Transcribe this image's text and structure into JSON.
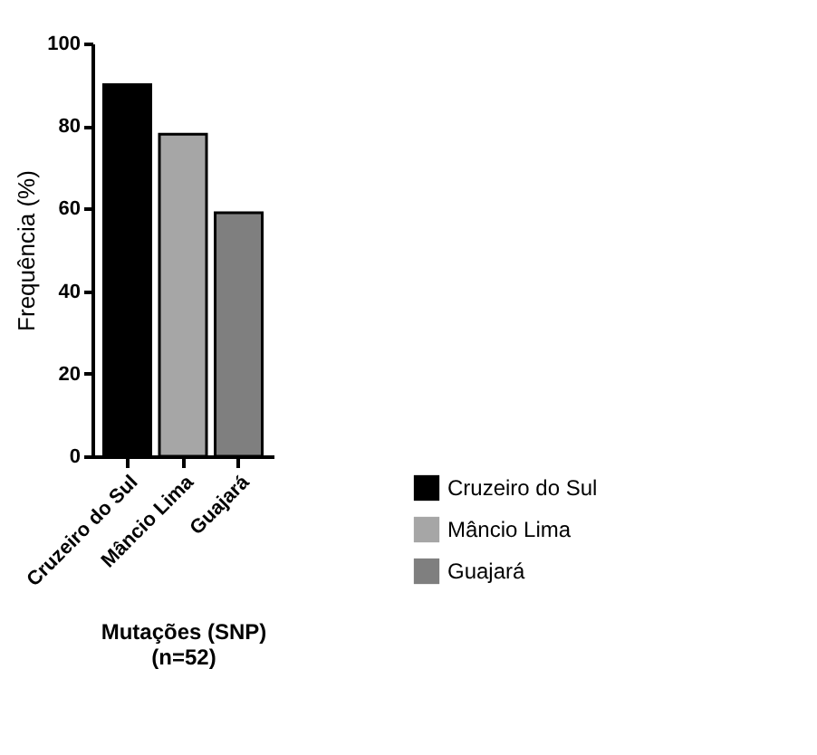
{
  "chart_data": {
    "type": "bar",
    "xlabel": "Mutações (SNP)\n(n=52)",
    "ylabel": "Frequência (%)",
    "categories": [
      "Cruzeiro do Sul",
      "Mâncio Lima",
      "Guajará"
    ],
    "series": [
      {
        "name": "Cruzeiro do Sul",
        "color": "#000000",
        "values": [
          90,
          null,
          null
        ]
      },
      {
        "name": "Mâncio Lima",
        "color": "#a6a6a6",
        "values": [
          null,
          78,
          null
        ]
      },
      {
        "name": "Guajará",
        "color": "#7f7f7f",
        "values": [
          null,
          null,
          59
        ]
      }
    ],
    "stacked": true,
    "ylim": [
      0,
      100
    ],
    "yticks": [
      0,
      20,
      40,
      60,
      80,
      100
    ],
    "grid": false,
    "legend": "right"
  }
}
